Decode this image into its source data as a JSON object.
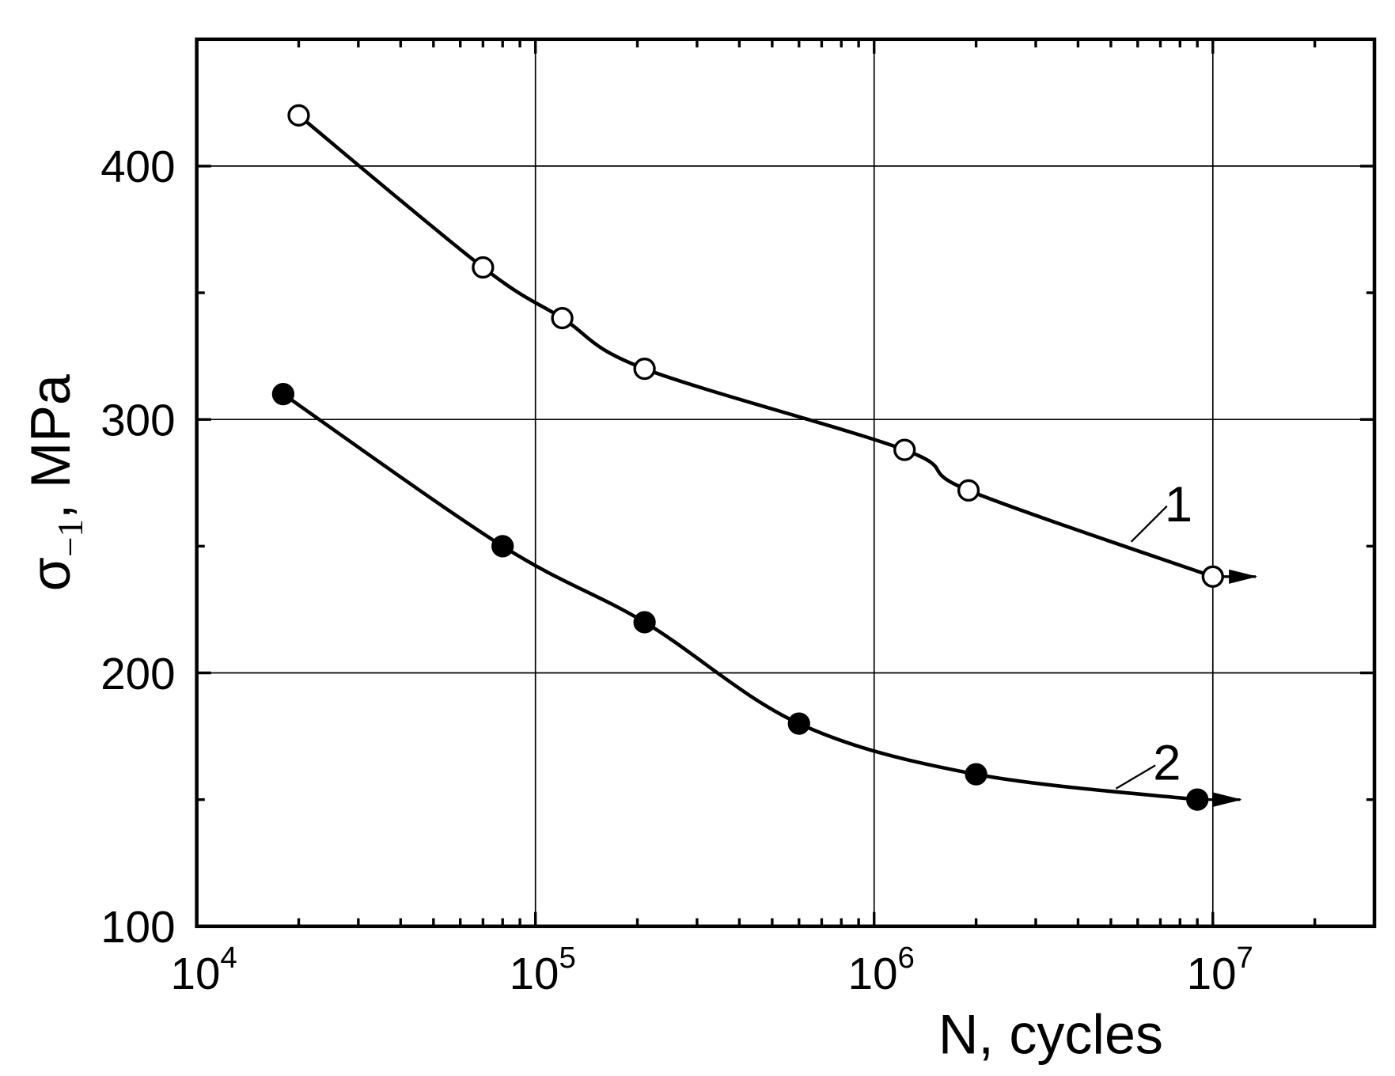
{
  "chart_data": {
    "type": "line",
    "xlabel": "N, cycles",
    "ylabel": {
      "symbol": "σ",
      "subscript": "−1",
      "text": ", MPa"
    },
    "xscale": "log",
    "xlim": [
      10000,
      30000000
    ],
    "xticks": [
      {
        "value": 10000,
        "label": "10",
        "exponent": "4"
      },
      {
        "value": 100000,
        "label": "10",
        "exponent": "5"
      },
      {
        "value": 1000000,
        "label": "10",
        "exponent": "6"
      },
      {
        "value": 10000000,
        "label": "10",
        "exponent": "7"
      }
    ],
    "xminorticks": [
      20000,
      30000,
      40000,
      50000,
      60000,
      70000,
      80000,
      90000,
      200000,
      300000,
      400000,
      500000,
      600000,
      700000,
      800000,
      900000,
      2000000,
      3000000,
      4000000,
      5000000,
      6000000,
      7000000,
      8000000,
      9000000,
      20000000
    ],
    "ylim": [
      100,
      450
    ],
    "yticks": [
      100,
      200,
      300,
      400
    ],
    "yminorticks": [
      150,
      250,
      350,
      450
    ],
    "grid": true,
    "series": [
      {
        "name": "1",
        "color": "#000000",
        "marker": "open",
        "x": [
          20000,
          70000,
          120000,
          210000,
          1230000,
          1900000,
          10000000
        ],
        "values": [
          420,
          360,
          340,
          320,
          288,
          272,
          238
        ]
      },
      {
        "name": "2",
        "color": "#000000",
        "marker": "filled",
        "x": [
          18000,
          80000,
          210000,
          600000,
          2000000,
          9000000
        ],
        "values": [
          310,
          250,
          220,
          180,
          160,
          150
        ]
      }
    ]
  }
}
